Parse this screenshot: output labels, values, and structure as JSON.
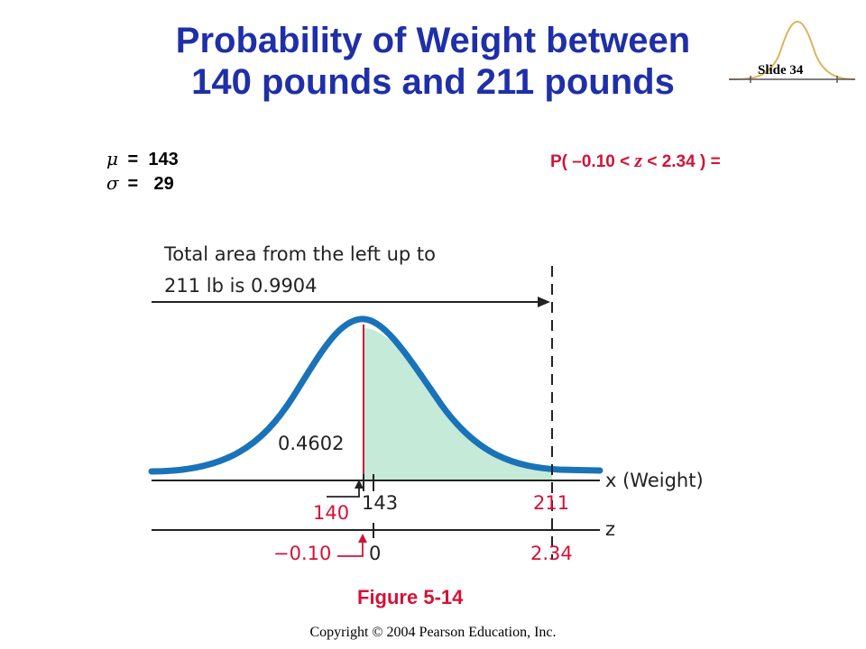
{
  "slide": {
    "title_line1": "Probability of Weight between",
    "title_line2": "140 pounds and 211 pounds",
    "slide_number": "Slide 34",
    "copyright": "Copyright © 2004 Pearson Education, Inc."
  },
  "params": {
    "mu_symbol": "μ",
    "mu_eq": " =  ",
    "mu_value": "143",
    "sigma_symbol": "σ",
    "sigma_eq": " = ",
    "sigma_value": "29"
  },
  "probability": {
    "prefix": "P( –0.10 < ",
    "z": "z",
    "suffix": " < 2.34 ) ="
  },
  "figure": {
    "annotation_line1": "Total area from the left up to",
    "annotation_line2": "211 lb is 0.9904",
    "shaded_area_label": "0.4602",
    "x_axis_label": "x (Weight)",
    "z_axis_label": "z",
    "x_ticks": {
      "lower": "140",
      "mean": "143",
      "upper": "211"
    },
    "z_ticks": {
      "lower": "−0.10",
      "mean": "0",
      "upper": "2.34"
    },
    "caption": "Figure 5-14"
  },
  "colors": {
    "title": "#1f2fa8",
    "curve": "#1a73b8",
    "shade": "#c6ead8",
    "accent": "#d41237",
    "ink": "#222222"
  }
}
